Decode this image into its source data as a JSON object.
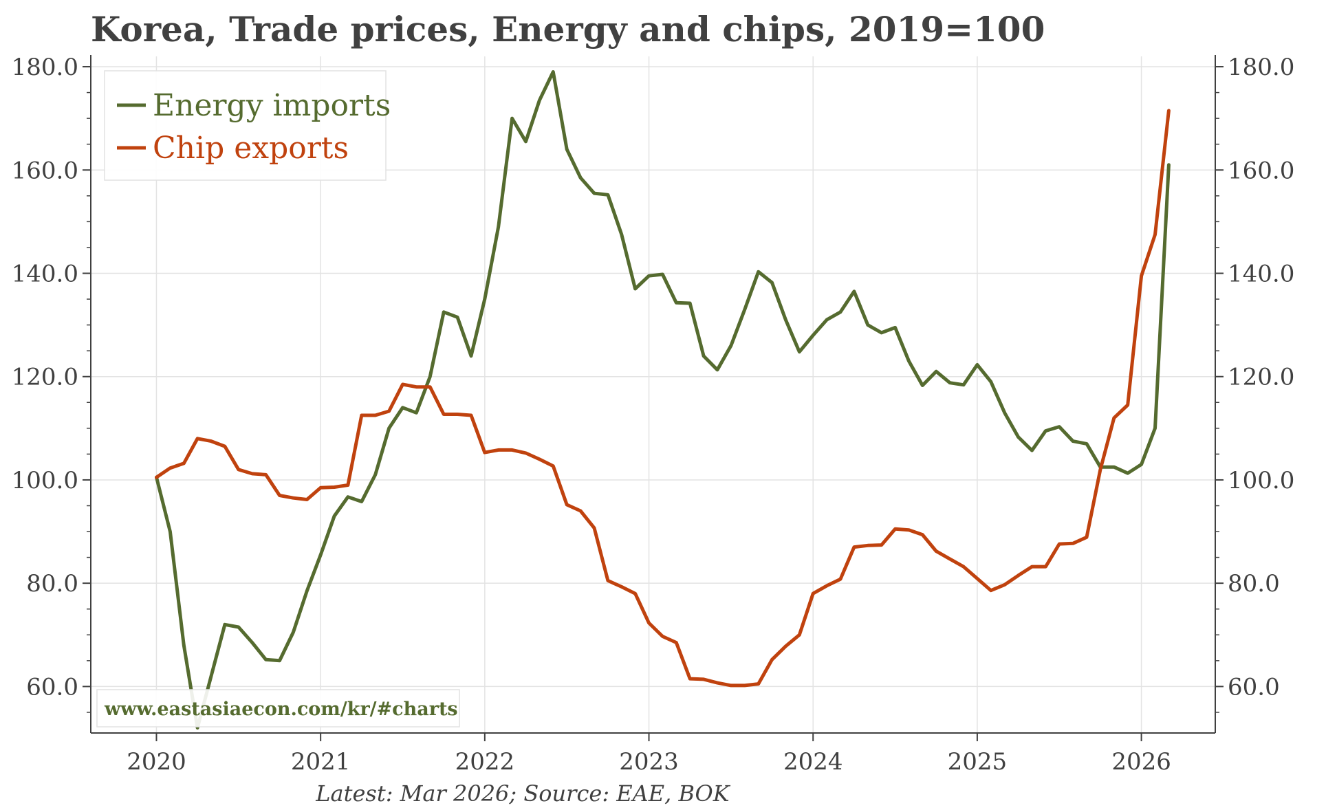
{
  "chart_data": {
    "type": "line",
    "title": "Korea, Trade prices, Energy and chips, 2019=100",
    "xlabel": "",
    "ylabel": "",
    "xlim": [
      2019.6,
      2026.45
    ],
    "ylim": [
      51,
      182
    ],
    "x_ticks": [
      "2020",
      "2021",
      "2022",
      "2023",
      "2024",
      "2025",
      "2026"
    ],
    "y_ticks": [
      "60.0",
      "80.0",
      "100.0",
      "120.0",
      "140.0",
      "160.0",
      "180.0"
    ],
    "secondary_y_axis": true,
    "grid": true,
    "legend_position": "top-left",
    "start": "2020-01",
    "frequency": "monthly",
    "series": [
      {
        "name": "Energy imports",
        "color": "#556b2f",
        "values": [
          100.5,
          90.0,
          68.0,
          52.0,
          62.0,
          72.0,
          71.5,
          68.5,
          65.2,
          65.0,
          70.5,
          78.5,
          85.5,
          93.0,
          96.7,
          95.8,
          101.0,
          110.0,
          114.0,
          113.0,
          120.0,
          132.5,
          131.5,
          124.0,
          135.0,
          149.0,
          170.0,
          165.5,
          173.5,
          179.0,
          164.0,
          158.5,
          155.5,
          155.2,
          147.5,
          137.0,
          139.5,
          139.8,
          134.3,
          134.2,
          124.0,
          121.3,
          126.0,
          133.0,
          140.3,
          138.2,
          131.0,
          124.8,
          128.0,
          131.0,
          132.5,
          136.5,
          130.0,
          128.5,
          129.5,
          123.0,
          118.3,
          121.0,
          118.8,
          118.4,
          122.3,
          119.0,
          113.0,
          108.3,
          105.7,
          109.5,
          110.3,
          107.5,
          107.0,
          102.5,
          102.5,
          101.3,
          103.0,
          110.0,
          161.0
        ],
        "last_value": 161.0
      },
      {
        "name": "Chip exports",
        "color": "#c0420e",
        "values": [
          100.5,
          102.3,
          103.2,
          108.0,
          107.5,
          106.5,
          102.0,
          101.2,
          101.0,
          97.0,
          96.5,
          96.2,
          98.5,
          98.6,
          99.0,
          112.5,
          112.5,
          113.3,
          118.5,
          118.0,
          118.0,
          112.7,
          112.7,
          112.5,
          105.3,
          105.8,
          105.8,
          105.2,
          104.0,
          102.7,
          95.2,
          94.0,
          90.7,
          80.5,
          79.3,
          78.0,
          72.3,
          69.7,
          68.5,
          61.5,
          61.4,
          60.7,
          60.2,
          60.2,
          60.5,
          65.2,
          67.8,
          70.0,
          78.0,
          79.5,
          80.8,
          87.0,
          87.3,
          87.4,
          90.5,
          90.3,
          89.4,
          86.2,
          84.7,
          83.2,
          80.9,
          78.6,
          79.7,
          81.5,
          83.2,
          83.2,
          87.6,
          87.7,
          88.9,
          102.0,
          112.0,
          114.5,
          139.5,
          147.5,
          171.5
        ],
        "last_value": 171.5
      }
    ]
  },
  "legend": {
    "items": [
      {
        "label": "Energy imports",
        "color": "#556b2f"
      },
      {
        "label": "Chip exports",
        "color": "#c0420e"
      }
    ]
  },
  "footnote": "Latest: Mar 2026; Source: EAE, BOK",
  "watermark": "www.eastasiaecon.com/kr/#charts"
}
